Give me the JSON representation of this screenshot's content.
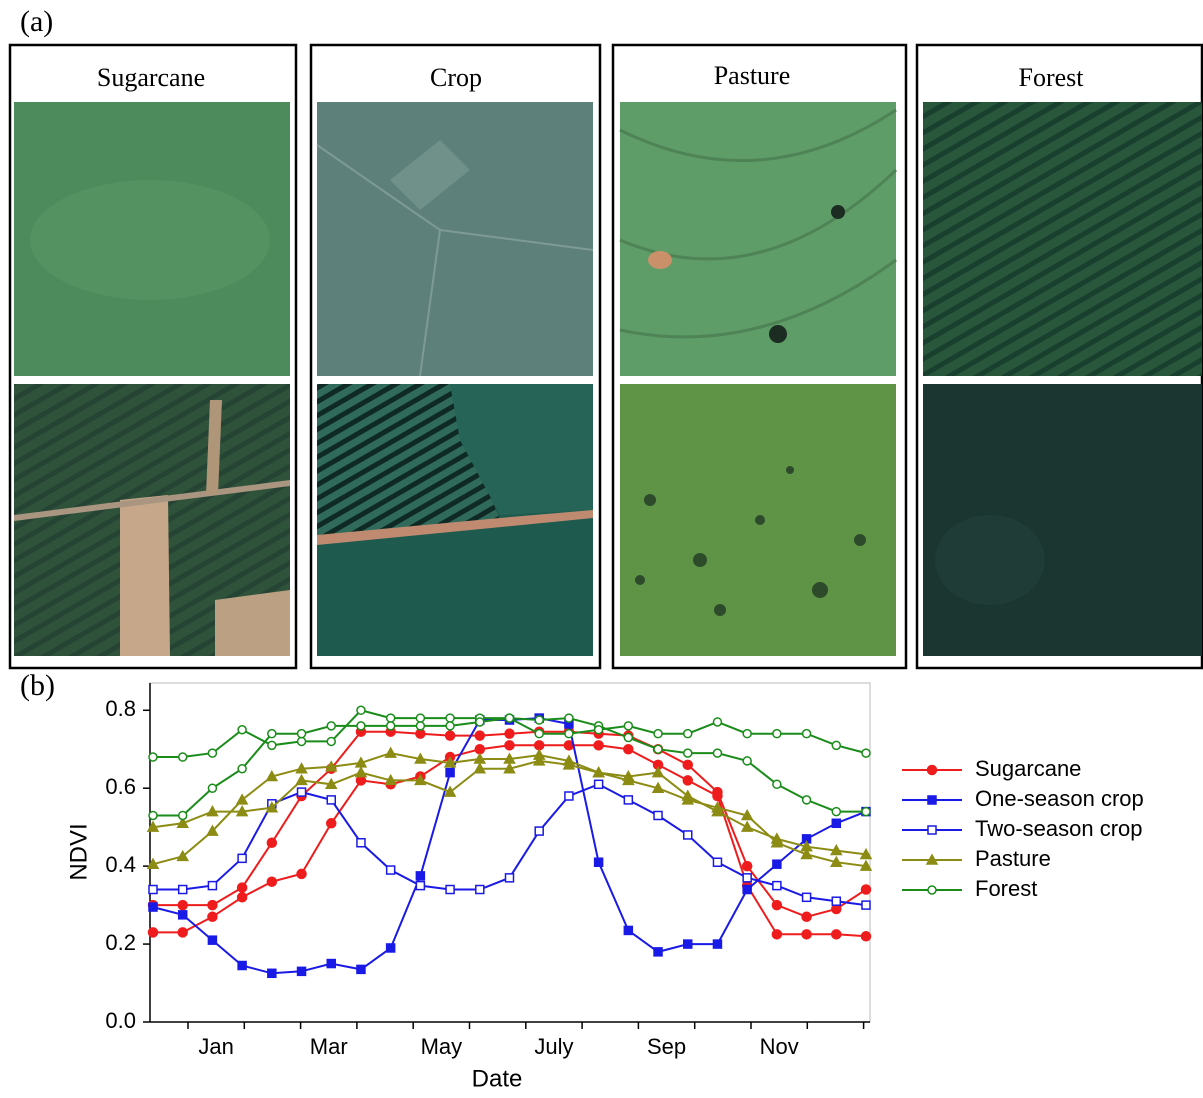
{
  "panel_a": {
    "label": "(a)",
    "panels": [
      {
        "title": "Sugarcane"
      },
      {
        "title": "Crop"
      },
      {
        "title": "Pasture"
      },
      {
        "title": "Forest"
      }
    ]
  },
  "chart_data": {
    "type": "line",
    "label": "(b)",
    "x_label": "Date",
    "y_label": "NDVI",
    "categories": [
      "Jan",
      null,
      "Mar",
      null,
      "May",
      null,
      "July",
      null,
      "Sep",
      null,
      "Nov",
      null
    ],
    "ylim": [
      0,
      0.87
    ],
    "yticks": [
      {
        "value": 0,
        "label": "0.0"
      },
      0.2,
      0.4,
      0.6,
      0.8
    ],
    "legend": "right",
    "series": [
      {
        "name": "Sugarcane",
        "color": "#ee1c1c",
        "marker": "filled-circle",
        "lines": [
          [
            0.3,
            0.3,
            0.3,
            0.345,
            0.46,
            0.58,
            0.65,
            0.745,
            0.745,
            0.74,
            0.735,
            0.735,
            0.74,
            0.745,
            0.745,
            0.74,
            0.735,
            0.7,
            0.66,
            0.59,
            0.4,
            0.3,
            0.27,
            0.29,
            0.34
          ],
          [
            0.23,
            0.23,
            0.27,
            0.32,
            0.36,
            0.38,
            0.51,
            0.62,
            0.61,
            0.63,
            0.68,
            0.7,
            0.71,
            0.71,
            0.71,
            0.71,
            0.7,
            0.66,
            0.62,
            0.58,
            0.35,
            0.225,
            0.225,
            0.225,
            0.22
          ]
        ]
      },
      {
        "name": "One-season crop",
        "color": "#1a1ae6",
        "marker": "filled-square",
        "lines": [
          [
            0.295,
            0.275,
            0.21,
            0.145,
            0.125,
            0.13,
            0.15,
            0.135,
            0.19,
            0.375,
            0.64,
            0.775,
            0.775,
            0.78,
            0.765,
            0.41,
            0.235,
            0.18,
            0.2,
            0.2,
            0.34,
            0.405,
            0.47,
            0.51,
            0.54
          ]
        ]
      },
      {
        "name": "Two-season crop",
        "color": "#1a1ae6",
        "marker": "open-square",
        "lines": [
          [
            0.34,
            0.34,
            0.35,
            0.42,
            0.56,
            0.59,
            0.57,
            0.46,
            0.39,
            0.35,
            0.34,
            0.34,
            0.37,
            0.49,
            0.58,
            0.61,
            0.57,
            0.53,
            0.48,
            0.41,
            0.37,
            0.35,
            0.32,
            0.31,
            0.3
          ]
        ]
      },
      {
        "name": "Pasture",
        "color": "#8c8c14",
        "marker": "filled-triangle",
        "lines": [
          [
            0.5,
            0.51,
            0.54,
            0.54,
            0.55,
            0.62,
            0.61,
            0.64,
            0.62,
            0.62,
            0.59,
            0.65,
            0.65,
            0.67,
            0.66,
            0.64,
            0.63,
            0.64,
            0.58,
            0.54,
            0.5,
            0.47,
            0.45,
            0.44,
            0.43
          ],
          [
            0.405,
            0.425,
            0.49,
            0.57,
            0.63,
            0.65,
            0.655,
            0.665,
            0.69,
            0.675,
            0.665,
            0.675,
            0.675,
            0.685,
            0.67,
            0.64,
            0.62,
            0.6,
            0.57,
            0.55,
            0.53,
            0.46,
            0.43,
            0.41,
            0.4
          ]
        ]
      },
      {
        "name": "Forest",
        "color": "#1a8c1a",
        "marker": "open-circle",
        "lines": [
          [
            0.68,
            0.68,
            0.69,
            0.75,
            0.71,
            0.72,
            0.72,
            0.8,
            0.78,
            0.78,
            0.78,
            0.78,
            0.78,
            0.775,
            0.78,
            0.76,
            0.73,
            0.7,
            0.69,
            0.69,
            0.67,
            0.61,
            0.57,
            0.54,
            0.54
          ],
          [
            0.53,
            0.53,
            0.6,
            0.65,
            0.74,
            0.74,
            0.76,
            0.76,
            0.76,
            0.76,
            0.76,
            0.77,
            0.78,
            0.74,
            0.74,
            0.75,
            0.76,
            0.74,
            0.74,
            0.77,
            0.74,
            0.74,
            0.74,
            0.71,
            0.69
          ]
        ]
      }
    ]
  }
}
